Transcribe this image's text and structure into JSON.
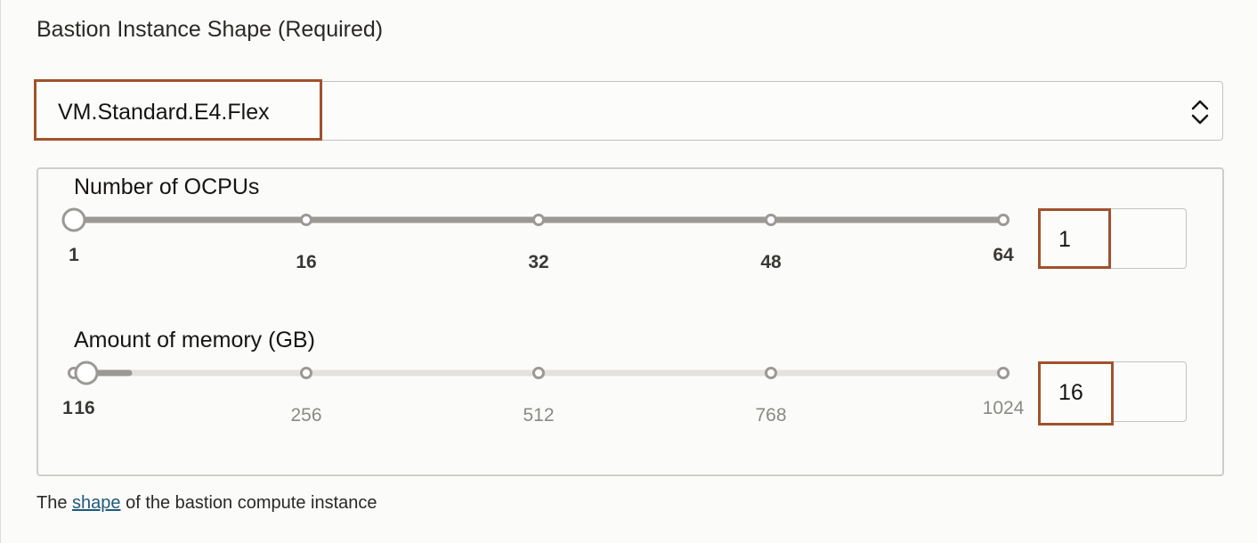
{
  "field": {
    "label": "Bastion Instance Shape (Required)",
    "selected_value": "VM.Standard.E4.Flex"
  },
  "ocpu": {
    "label": "Number of OCPUs",
    "min": 1,
    "max": 64,
    "value": 1,
    "ticks": [
      "1",
      "16",
      "32",
      "48",
      "64"
    ],
    "input_value": "1"
  },
  "memory": {
    "label": "Amount of memory (GB)",
    "min": 1,
    "max": 1024,
    "value": 16,
    "ticks": [
      "1",
      "256",
      "512",
      "768",
      "1024"
    ],
    "input_value": "16",
    "value_label": "16"
  },
  "help": {
    "prefix": "The ",
    "link": "shape",
    "suffix": " of the bastion compute instance"
  },
  "colors": {
    "highlight": "#a0522d",
    "track_active": "#9a9995",
    "track_inactive": "#e3e2df",
    "link": "#1f5a7a"
  }
}
